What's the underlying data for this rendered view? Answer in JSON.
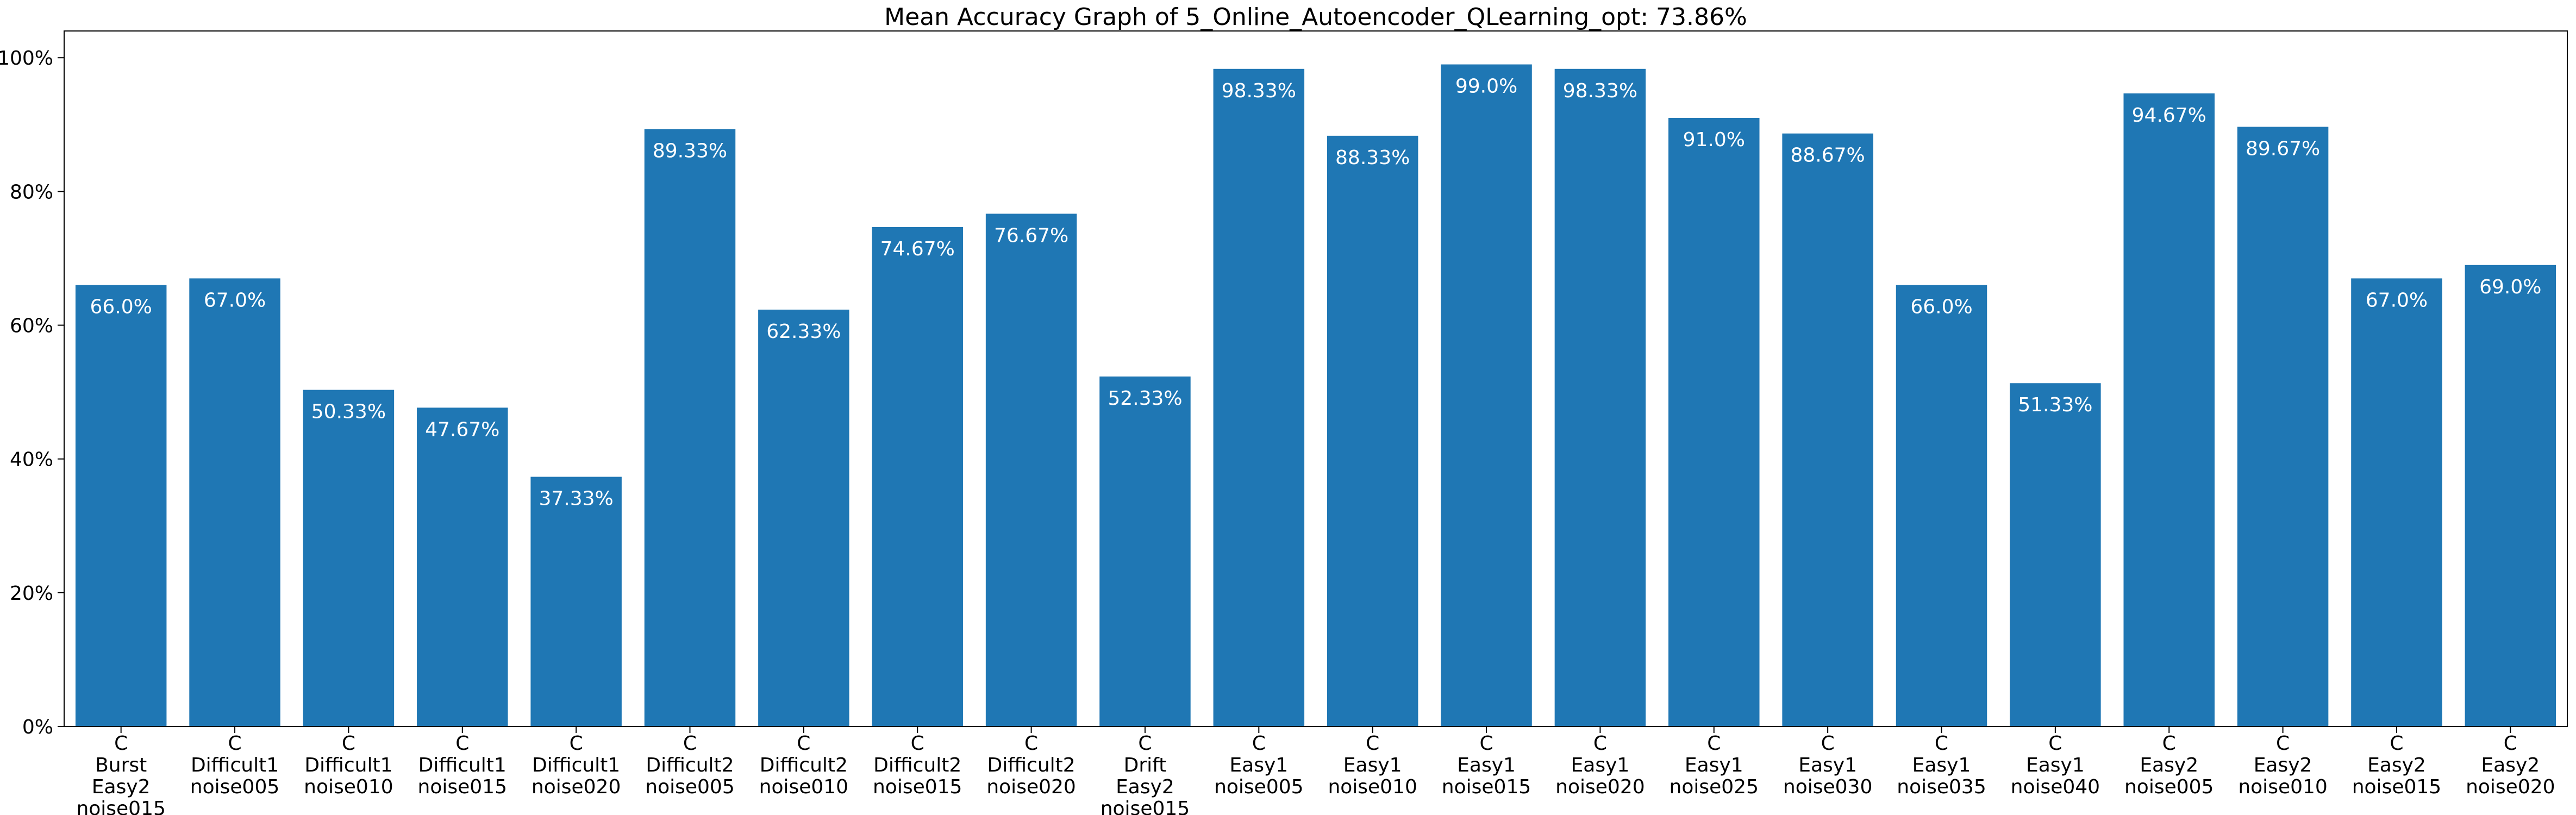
{
  "chart_data": {
    "type": "bar",
    "title": "Mean Accuracy Graph of 5_Online_Autoencoder_QLearning_opt: 73.86%",
    "xlabel": "",
    "ylabel": "",
    "ylim": [
      0,
      104
    ],
    "yticks": [
      0,
      20,
      40,
      60,
      80,
      100
    ],
    "ytick_labels": [
      "0%",
      "20%",
      "40%",
      "60%",
      "80%",
      "100%"
    ],
    "bar_color": "#1f77b4",
    "categories": [
      [
        "C",
        "Burst",
        "Easy2",
        "noise015"
      ],
      [
        "C",
        "Difficult1",
        "noise005"
      ],
      [
        "C",
        "Difficult1",
        "noise010"
      ],
      [
        "C",
        "Difficult1",
        "noise015"
      ],
      [
        "C",
        "Difficult1",
        "noise020"
      ],
      [
        "C",
        "Difficult2",
        "noise005"
      ],
      [
        "C",
        "Difficult2",
        "noise010"
      ],
      [
        "C",
        "Difficult2",
        "noise015"
      ],
      [
        "C",
        "Difficult2",
        "noise020"
      ],
      [
        "C",
        "Drift",
        "Easy2",
        "noise015"
      ],
      [
        "C",
        "Easy1",
        "noise005"
      ],
      [
        "C",
        "Easy1",
        "noise010"
      ],
      [
        "C",
        "Easy1",
        "noise015"
      ],
      [
        "C",
        "Easy1",
        "noise020"
      ],
      [
        "C",
        "Easy1",
        "noise025"
      ],
      [
        "C",
        "Easy1",
        "noise030"
      ],
      [
        "C",
        "Easy1",
        "noise035"
      ],
      [
        "C",
        "Easy1",
        "noise040"
      ],
      [
        "C",
        "Easy2",
        "noise005"
      ],
      [
        "C",
        "Easy2",
        "noise010"
      ],
      [
        "C",
        "Easy2",
        "noise015"
      ],
      [
        "C",
        "Easy2",
        "noise020"
      ]
    ],
    "values": [
      66.0,
      67.0,
      50.33,
      47.67,
      37.33,
      89.33,
      62.33,
      74.67,
      76.67,
      52.33,
      98.33,
      88.33,
      99.0,
      98.33,
      91.0,
      88.67,
      66.0,
      51.33,
      94.67,
      89.67,
      67.0,
      69.0
    ],
    "value_labels": [
      "66.0%",
      "67.0%",
      "50.33%",
      "47.67%",
      "37.33%",
      "89.33%",
      "62.33%",
      "74.67%",
      "76.67%",
      "52.33%",
      "98.33%",
      "88.33%",
      "99.0%",
      "98.33%",
      "91.0%",
      "88.67%",
      "66.0%",
      "51.33%",
      "94.67%",
      "89.67%",
      "67.0%",
      "69.0%"
    ],
    "grid": false,
    "legend": "none"
  }
}
